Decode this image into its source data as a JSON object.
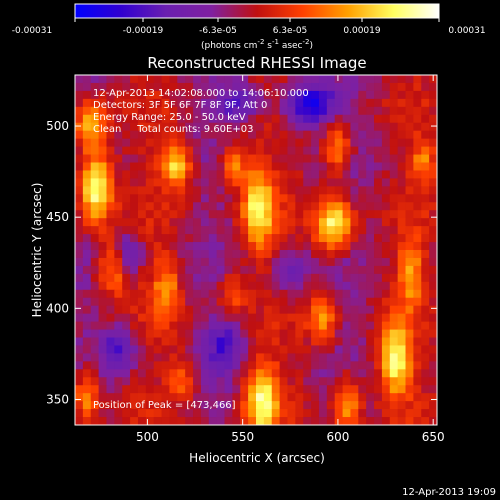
{
  "colorbar": {
    "ticks": [
      "-0.00031",
      "-0.00019",
      "-6.3e-05",
      "6.3e-05",
      "0.00019",
      "0.00031"
    ],
    "unit_text": "(photons cm",
    "unit_exp1": "-2",
    "unit_mid": " s",
    "unit_exp2": "-1",
    "unit_end": " asec",
    "unit_exp3": "-2",
    "unit_close": ")"
  },
  "chart_data": {
    "type": "heatmap",
    "title": "Reconstructed RHESSI Image",
    "xlabel": "Heliocentric X (arcsec)",
    "ylabel": "Heliocentric Y (arcsec)",
    "xlim": [
      462,
      652
    ],
    "ylim": [
      336,
      528
    ],
    "x_ticks": [
      500,
      550,
      600,
      650
    ],
    "y_ticks": [
      350,
      400,
      450,
      500
    ],
    "zlim": [
      -0.00031,
      0.00031
    ],
    "colormap": [
      "#0000ff",
      "#3000d0",
      "#6a1fb0",
      "#8020a0",
      "#c01010",
      "#ff4000",
      "#ffa000",
      "#ffff60",
      "#ffffff"
    ],
    "annotations": [
      "12-Apr-2013 14:02:08.000 to 14:06:10.000",
      "Detectors: 3F 5F 6F 7F 8F 9F, Att 0",
      "Energy Range: 25.0 - 50.0 keV",
      "Clean     Total counts: 9.60E+03",
      "Position of Peak = [473,466]"
    ],
    "sources": [
      {
        "x": 473,
        "y": 466,
        "amp": 1.0,
        "sx": 6,
        "sy": 14
      },
      {
        "x": 470,
        "y": 500,
        "amp": 0.7,
        "sx": 6,
        "sy": 10
      },
      {
        "x": 482,
        "y": 422,
        "amp": 0.55,
        "sx": 6,
        "sy": 10
      },
      {
        "x": 468,
        "y": 352,
        "amp": 0.6,
        "sx": 5,
        "sy": 10
      },
      {
        "x": 515,
        "y": 478,
        "amp": 0.75,
        "sx": 6,
        "sy": 8
      },
      {
        "x": 510,
        "y": 410,
        "amp": 0.5,
        "sx": 5,
        "sy": 12
      },
      {
        "x": 518,
        "y": 362,
        "amp": 0.45,
        "sx": 5,
        "sy": 8
      },
      {
        "x": 558,
        "y": 455,
        "amp": 0.8,
        "sx": 6,
        "sy": 16
      },
      {
        "x": 545,
        "y": 478,
        "amp": 0.55,
        "sx": 5,
        "sy": 8
      },
      {
        "x": 560,
        "y": 350,
        "amp": 0.85,
        "sx": 6,
        "sy": 14
      },
      {
        "x": 545,
        "y": 408,
        "amp": 0.45,
        "sx": 5,
        "sy": 8
      },
      {
        "x": 598,
        "y": 446,
        "amp": 0.9,
        "sx": 7,
        "sy": 10
      },
      {
        "x": 600,
        "y": 488,
        "amp": 0.6,
        "sx": 5,
        "sy": 10
      },
      {
        "x": 592,
        "y": 395,
        "amp": 0.55,
        "sx": 5,
        "sy": 10
      },
      {
        "x": 605,
        "y": 348,
        "amp": 0.6,
        "sx": 5,
        "sy": 12
      },
      {
        "x": 638,
        "y": 420,
        "amp": 0.5,
        "sx": 5,
        "sy": 14
      },
      {
        "x": 630,
        "y": 372,
        "amp": 0.85,
        "sx": 6,
        "sy": 14
      },
      {
        "x": 645,
        "y": 480,
        "amp": 0.45,
        "sx": 5,
        "sy": 8
      },
      {
        "x": 585,
        "y": 512,
        "amp": -0.9,
        "sx": 10,
        "sy": 8
      },
      {
        "x": 548,
        "y": 512,
        "amp": -0.55,
        "sx": 8,
        "sy": 6
      },
      {
        "x": 485,
        "y": 378,
        "amp": -0.6,
        "sx": 6,
        "sy": 8
      },
      {
        "x": 490,
        "y": 430,
        "amp": -0.5,
        "sx": 5,
        "sy": 8
      },
      {
        "x": 540,
        "y": 380,
        "amp": -0.5,
        "sx": 6,
        "sy": 10
      },
      {
        "x": 575,
        "y": 420,
        "amp": -0.4,
        "sx": 6,
        "sy": 10
      }
    ]
  },
  "footer": {
    "timestamp": "12-Apr-2013 19:09"
  }
}
